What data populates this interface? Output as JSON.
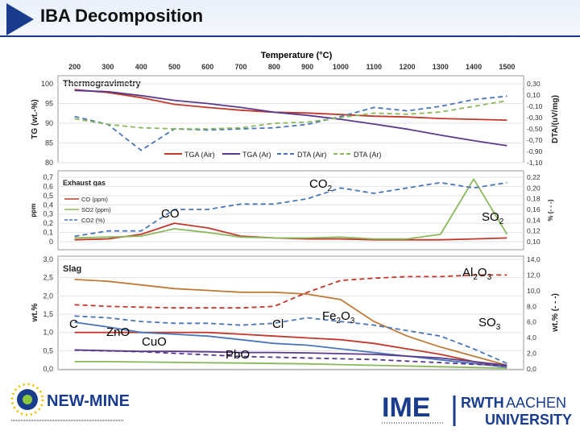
{
  "slide_title": "IBA Decomposition",
  "top_axis": {
    "label": "Temperature (°C)",
    "ticks": [
      "200",
      "300",
      "400",
      "500",
      "600",
      "700",
      "800",
      "900",
      "1000",
      "1100",
      "1200",
      "1300",
      "1400",
      "1500"
    ]
  },
  "chart_data": [
    {
      "type": "line",
      "title": "Thermogravimetry",
      "ylabel": "TG (wt.-%)",
      "y2label": "DTA/(uV/mg)",
      "ylim": [
        80,
        100
      ],
      "y2lim": [
        -1.1,
        0.3
      ],
      "yticks": [
        "100",
        "95",
        "90",
        "85",
        "80"
      ],
      "y2ticks": [
        "0,30",
        "0,10",
        "-0,10",
        "-0,30",
        "-0,50",
        "-0,70",
        "-0,90",
        "-1,10"
      ],
      "legend": [
        "TGA (Air)",
        "TGA (Ar)",
        "DTA (Air)",
        "DTA (Ar)"
      ],
      "x": [
        200,
        300,
        400,
        500,
        600,
        700,
        800,
        900,
        1000,
        1100,
        1200,
        1300,
        1400,
        1500
      ],
      "series": [
        {
          "name": "TGA (Air)",
          "axis": "left",
          "style": "solid",
          "color": "#c0392b",
          "values": [
            98.5,
            97.8,
            96.5,
            94.8,
            94.0,
            93.3,
            92.8,
            92.6,
            92.2,
            91.8,
            91.6,
            91.2,
            91.0,
            90.8
          ]
        },
        {
          "name": "TGA (Ar)",
          "axis": "left",
          "style": "solid",
          "color": "#5b3a8c",
          "values": [
            98.3,
            98.0,
            97.0,
            95.8,
            95.0,
            94.0,
            92.8,
            92.0,
            91.0,
            89.8,
            88.5,
            87.0,
            85.6,
            84.3
          ]
        },
        {
          "name": "DTA (Air)",
          "axis": "right",
          "style": "dash",
          "color": "#4a76b8",
          "values": [
            -0.28,
            -0.42,
            -0.88,
            -0.5,
            -0.52,
            -0.5,
            -0.48,
            -0.42,
            -0.28,
            -0.12,
            -0.18,
            -0.1,
            0.02,
            0.08
          ]
        },
        {
          "name": "DTA (Ar)",
          "axis": "right",
          "style": "dash",
          "color": "#8cb85c",
          "values": [
            -0.32,
            -0.42,
            -0.48,
            -0.5,
            -0.5,
            -0.48,
            -0.4,
            -0.38,
            -0.3,
            -0.22,
            -0.24,
            -0.2,
            -0.1,
            0.0
          ]
        }
      ]
    },
    {
      "type": "line",
      "title": "Exhaust gas",
      "ylabel": "ppm",
      "y2label": "% (- - -)",
      "ylim": [
        0,
        0.7
      ],
      "y2lim": [
        0.1,
        0.22
      ],
      "yticks": [
        "0,7",
        "0,6",
        "0,5",
        "0,4",
        "0,3",
        "0,2",
        "0,1",
        "0"
      ],
      "y2ticks": [
        "0,22",
        "0,20",
        "0,18",
        "0,16",
        "0,14",
        "0,12",
        "0,10"
      ],
      "legend": [
        "CO (ppm)",
        "SO2 (ppm)",
        "CO2 (%)"
      ],
      "annotations": [
        "CO",
        "CO2",
        "SO2"
      ],
      "x": [
        200,
        300,
        400,
        500,
        600,
        700,
        800,
        900,
        1000,
        1100,
        1200,
        1300,
        1400,
        1500
      ],
      "series": [
        {
          "name": "CO (ppm)",
          "axis": "left",
          "style": "solid",
          "color": "#c0392b",
          "values": [
            0.02,
            0.03,
            0.08,
            0.2,
            0.15,
            0.06,
            0.04,
            0.03,
            0.03,
            0.02,
            0.02,
            0.02,
            0.03,
            0.04
          ]
        },
        {
          "name": "SO2 (ppm)",
          "axis": "left",
          "style": "solid",
          "color": "#8cb85c",
          "values": [
            0.04,
            0.05,
            0.06,
            0.14,
            0.1,
            0.05,
            0.04,
            0.04,
            0.05,
            0.03,
            0.03,
            0.08,
            0.68,
            0.08
          ]
        },
        {
          "name": "CO2 (%)",
          "axis": "right",
          "style": "dash",
          "color": "#4a76b8",
          "values": [
            0.11,
            0.12,
            0.12,
            0.16,
            0.16,
            0.17,
            0.17,
            0.18,
            0.2,
            0.19,
            0.2,
            0.21,
            0.2,
            0.21
          ]
        }
      ]
    },
    {
      "type": "line",
      "title": "Slag",
      "ylabel": "wt.%",
      "y2label": "wt.% (- - -)",
      "ylim": [
        0,
        3.0
      ],
      "y2lim": [
        0,
        14
      ],
      "yticks": [
        "3,0",
        "2,5",
        "2,0",
        "1,5",
        "1,0",
        "0,5",
        "0,0"
      ],
      "y2ticks": [
        "14,0",
        "12,0",
        "10,0",
        "8,0",
        "6,0",
        "4,0",
        "2,0",
        "0,0"
      ],
      "annotations": [
        "Al2O3",
        "C",
        "ZnO",
        "CuO",
        "Cl",
        "Fe2O3",
        "PbO",
        "SO3"
      ],
      "x": [
        200,
        300,
        400,
        500,
        600,
        700,
        800,
        900,
        1000,
        1100,
        1200,
        1300,
        1400,
        1500
      ],
      "series": [
        {
          "name": "Fe2O3",
          "axis": "left",
          "style": "solid",
          "color": "#c07a3a",
          "values": [
            2.45,
            2.4,
            2.3,
            2.2,
            2.15,
            2.1,
            2.1,
            2.05,
            1.9,
            1.3,
            0.9,
            0.6,
            0.35,
            0.1
          ]
        },
        {
          "name": "Al2O3",
          "axis": "right",
          "style": "dash",
          "color": "#c0392b",
          "values": [
            8.2,
            8.0,
            7.9,
            7.8,
            7.8,
            7.8,
            8.0,
            9.8,
            11.3,
            11.6,
            11.8,
            11.8,
            12.0,
            12.0
          ]
        },
        {
          "name": "Cl",
          "axis": "left",
          "style": "dash",
          "color": "#4a76b8",
          "values": [
            1.45,
            1.4,
            1.3,
            1.25,
            1.25,
            1.2,
            1.25,
            1.4,
            1.3,
            1.2,
            1.05,
            0.9,
            0.55,
            0.15
          ]
        },
        {
          "name": "ZnO",
          "axis": "left",
          "style": "solid",
          "color": "#c0392b",
          "values": [
            1.0,
            1.0,
            1.0,
            1.0,
            1.0,
            0.95,
            0.9,
            0.85,
            0.8,
            0.7,
            0.55,
            0.4,
            0.2,
            0.05
          ]
        },
        {
          "name": "C",
          "axis": "left",
          "style": "solid",
          "color": "#4a76b8",
          "values": [
            1.28,
            1.15,
            1.0,
            0.95,
            0.9,
            0.8,
            0.7,
            0.65,
            0.55,
            0.45,
            0.35,
            0.25,
            0.15,
            0.05
          ]
        },
        {
          "name": "CuO",
          "axis": "left",
          "style": "solid",
          "color": "#5b3a8c",
          "values": [
            0.52,
            0.5,
            0.48,
            0.48,
            0.47,
            0.45,
            0.45,
            0.44,
            0.42,
            0.4,
            0.35,
            0.3,
            0.2,
            0.1
          ]
        },
        {
          "name": "SO3",
          "axis": "right",
          "style": "dash",
          "color": "#5b3a8c",
          "values": [
            2.4,
            2.3,
            2.2,
            2.0,
            1.8,
            1.6,
            1.5,
            1.4,
            1.3,
            1.2,
            1.0,
            0.8,
            0.6,
            0.4
          ]
        },
        {
          "name": "PbO",
          "axis": "left",
          "style": "solid",
          "color": "#8cb85c",
          "values": [
            0.2,
            0.2,
            0.19,
            0.18,
            0.17,
            0.16,
            0.15,
            0.14,
            0.12,
            0.1,
            0.08,
            0.06,
            0.04,
            0.02
          ]
        }
      ]
    }
  ],
  "logos": {
    "left_text": "NEW-MINE",
    "right_ime": "IME",
    "right_rwth": "RWTH",
    "right_aachen": "AACHEN",
    "right_university": "UNIVERSITY"
  }
}
